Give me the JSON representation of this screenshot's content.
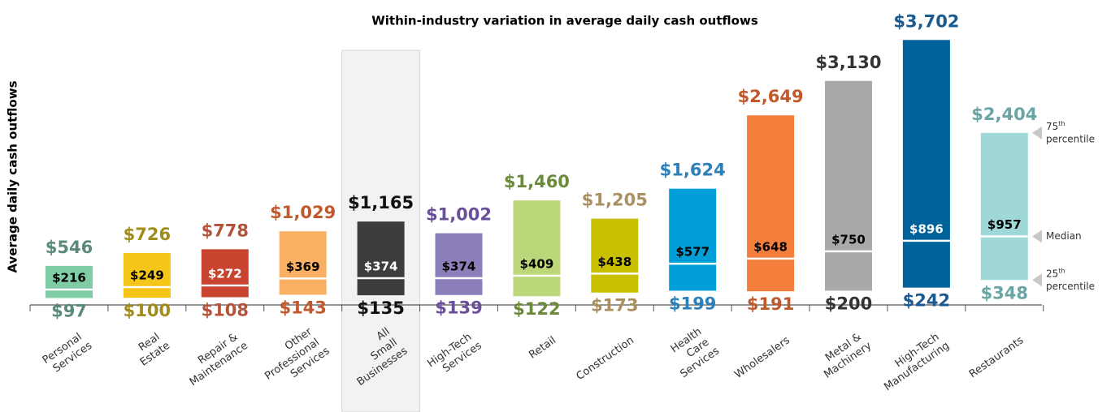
{
  "chart_data": {
    "type": "range_bar",
    "title": "Within-industry variation in average daily cash outflows",
    "y_label": "Average daily cash outflows",
    "categories": [
      "Personal Services",
      "Real Estate",
      "Repair & Maintenance",
      "Other Professional Services",
      "All Small Businesses",
      "High-Tech Services",
      "Retail",
      "Construction",
      "Health Care Services",
      "Wholesalers",
      "Metal & Machinery",
      "High-Tech Manufacturing",
      "Restaurants"
    ],
    "highlight": 4,
    "colors": [
      "#7fcca5",
      "#f5c518",
      "#c8442f",
      "#f9b062",
      "#3d3d3d",
      "#8c7dbb",
      "#bcd77a",
      "#c8bf00",
      "#009fda",
      "#f47f3c",
      "#a9a9a9",
      "#00629b",
      "#a0d8da"
    ],
    "label_colors": [
      "#5a8a78",
      "#a08c1a",
      "#b5533a",
      "#c05a2c",
      "#111111",
      "#6a4f9a",
      "#6b8a3a",
      "#a89060",
      "#2a80b9",
      "#c05a2c",
      "#333333",
      "#1a5a8f",
      "#6aa5a5"
    ],
    "median_label_colors": [
      "#000000",
      "#000000",
      "#ffffff",
      "#000000",
      "#ffffff",
      "#000000",
      "#000000",
      "#000000",
      "#000000",
      "#000000",
      "#000000",
      "#ffffff",
      "#000000"
    ],
    "series": [
      {
        "name": "25th percentile",
        "values": [
          97,
          100,
          108,
          143,
          135,
          139,
          122,
          173,
          199,
          191,
          200,
          242,
          348
        ],
        "value_labels": [
          "$97",
          "$100",
          "$108",
          "$143",
          "$135",
          "$139",
          "$122",
          "$173",
          "$199",
          "$191",
          "$200",
          "$242",
          "$348"
        ]
      },
      {
        "name": "Median",
        "values": [
          216,
          249,
          272,
          369,
          374,
          374,
          409,
          438,
          577,
          648,
          750,
          896,
          957
        ],
        "value_labels": [
          "$216",
          "$249",
          "$272",
          "$369",
          "$374",
          "$374",
          "$409",
          "$438",
          "$577",
          "$648",
          "$750",
          "$896",
          "$957"
        ]
      },
      {
        "name": "75th percentile",
        "values": [
          546,
          726,
          778,
          1029,
          1165,
          1002,
          1460,
          1205,
          1624,
          2649,
          3130,
          3702,
          2404
        ],
        "value_labels": [
          "$546",
          "$726",
          "$778",
          "$1,029",
          "$1,165",
          "$1,002",
          "$1,460",
          "$1,205",
          "$1,624",
          "$2,649",
          "$3,130",
          "$3,702",
          "$2,404"
        ]
      }
    ],
    "legend": [
      {
        "num": "75",
        "sup": "th",
        "word": "percentile",
        "series": 2
      },
      {
        "word": "Median",
        "series": 1
      },
      {
        "num": "25",
        "sup": "th",
        "word": "percentile",
        "series": 0
      }
    ],
    "ylim": [
      0,
      4000
    ]
  }
}
